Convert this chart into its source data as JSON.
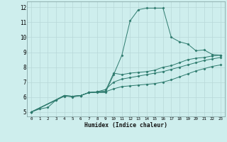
{
  "xlabel": "Humidex (Indice chaleur)",
  "background_color": "#ceeeed",
  "grid_color": "#b8d8d8",
  "line_color": "#2e7b6e",
  "xlim": [
    -0.5,
    23.5
  ],
  "ylim": [
    4.7,
    12.4
  ],
  "xticks": [
    0,
    1,
    2,
    3,
    4,
    5,
    6,
    7,
    8,
    9,
    10,
    11,
    12,
    13,
    14,
    15,
    16,
    17,
    18,
    19,
    20,
    21,
    22,
    23
  ],
  "yticks": [
    5,
    6,
    7,
    8,
    9,
    10,
    11,
    12
  ],
  "series1": [
    [
      0,
      5.0
    ],
    [
      1,
      5.2
    ],
    [
      2,
      5.3
    ],
    [
      3,
      5.8
    ],
    [
      4,
      6.1
    ],
    [
      5,
      6.0
    ],
    [
      6,
      6.1
    ],
    [
      7,
      6.3
    ],
    [
      8,
      6.3
    ],
    [
      9,
      6.3
    ],
    [
      10,
      7.5
    ],
    [
      11,
      8.8
    ],
    [
      12,
      11.1
    ],
    [
      13,
      11.85
    ],
    [
      14,
      11.95
    ],
    [
      15,
      11.95
    ],
    [
      16,
      11.95
    ],
    [
      17,
      10.0
    ],
    [
      18,
      9.7
    ],
    [
      19,
      9.55
    ],
    [
      20,
      9.1
    ],
    [
      21,
      9.15
    ],
    [
      22,
      8.85
    ],
    [
      23,
      8.8
    ]
  ],
  "series2": [
    [
      0,
      5.0
    ],
    [
      3,
      5.8
    ],
    [
      4,
      6.1
    ],
    [
      5,
      6.05
    ],
    [
      6,
      6.1
    ],
    [
      7,
      6.3
    ],
    [
      8,
      6.35
    ],
    [
      9,
      6.4
    ],
    [
      10,
      7.6
    ],
    [
      11,
      7.5
    ],
    [
      12,
      7.6
    ],
    [
      13,
      7.65
    ],
    [
      14,
      7.7
    ],
    [
      15,
      7.8
    ],
    [
      16,
      8.0
    ],
    [
      17,
      8.1
    ],
    [
      18,
      8.3
    ],
    [
      19,
      8.5
    ],
    [
      20,
      8.6
    ],
    [
      21,
      8.65
    ],
    [
      22,
      8.75
    ],
    [
      23,
      8.8
    ]
  ],
  "series3": [
    [
      0,
      5.0
    ],
    [
      4,
      6.1
    ],
    [
      5,
      6.05
    ],
    [
      6,
      6.1
    ],
    [
      7,
      6.3
    ],
    [
      8,
      6.35
    ],
    [
      9,
      6.5
    ],
    [
      10,
      7.0
    ],
    [
      11,
      7.2
    ],
    [
      12,
      7.3
    ],
    [
      13,
      7.4
    ],
    [
      14,
      7.5
    ],
    [
      15,
      7.6
    ],
    [
      16,
      7.7
    ],
    [
      17,
      7.85
    ],
    [
      18,
      8.0
    ],
    [
      19,
      8.15
    ],
    [
      20,
      8.3
    ],
    [
      21,
      8.45
    ],
    [
      22,
      8.55
    ],
    [
      23,
      8.65
    ]
  ],
  "series4": [
    [
      0,
      5.0
    ],
    [
      4,
      6.05
    ],
    [
      5,
      6.05
    ],
    [
      6,
      6.1
    ],
    [
      7,
      6.3
    ],
    [
      8,
      6.35
    ],
    [
      9,
      6.35
    ],
    [
      10,
      6.55
    ],
    [
      11,
      6.7
    ],
    [
      12,
      6.75
    ],
    [
      13,
      6.8
    ],
    [
      14,
      6.85
    ],
    [
      15,
      6.9
    ],
    [
      16,
      7.0
    ],
    [
      17,
      7.15
    ],
    [
      18,
      7.35
    ],
    [
      19,
      7.55
    ],
    [
      20,
      7.75
    ],
    [
      21,
      7.9
    ],
    [
      22,
      8.05
    ],
    [
      23,
      8.15
    ]
  ]
}
